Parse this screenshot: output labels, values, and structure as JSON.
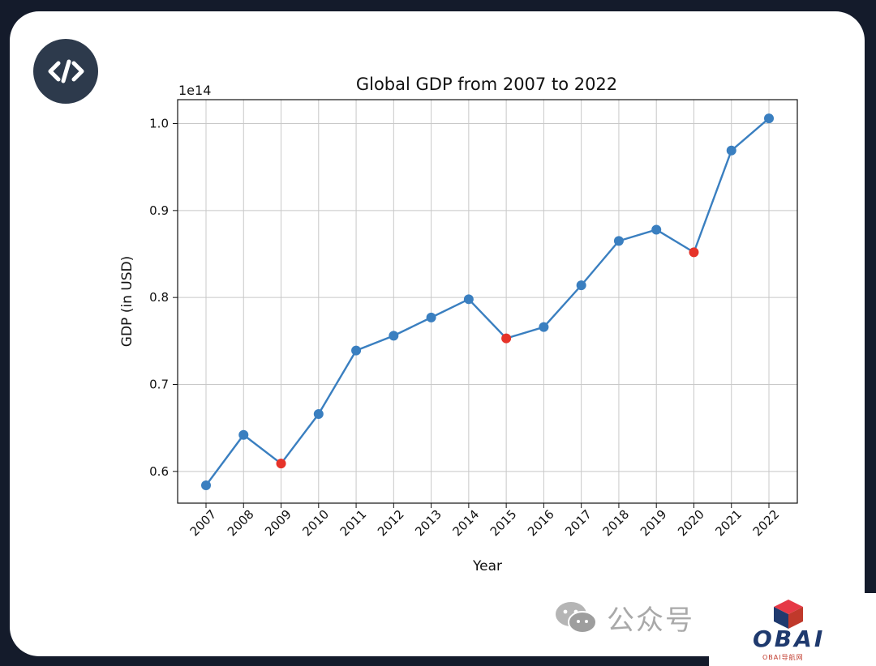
{
  "badge": {
    "icon": "code-icon"
  },
  "chart_data": {
    "type": "line",
    "title": "Global GDP from 2007 to 2022",
    "xlabel": "Year",
    "ylabel": "GDP (in USD)",
    "y_offset_label": "1e14",
    "x": [
      "2007",
      "2008",
      "2009",
      "2010",
      "2011",
      "2012",
      "2013",
      "2014",
      "2015",
      "2016",
      "2017",
      "2018",
      "2019",
      "2020",
      "2021",
      "2022"
    ],
    "series": [
      {
        "values": [
          0.584,
          0.642,
          0.609,
          0.666,
          0.739,
          0.756,
          0.777,
          0.798,
          0.753,
          0.766,
          0.814,
          0.865,
          0.878,
          0.852,
          0.969,
          1.006
        ],
        "color": "#3a7fc0"
      }
    ],
    "highlight_points": [
      {
        "x": "2009",
        "value": 0.609,
        "color": "#e63329"
      },
      {
        "x": "2015",
        "value": 0.753,
        "color": "#e63329"
      },
      {
        "x": "2020",
        "value": 0.852,
        "color": "#e63329"
      }
    ],
    "yticks": [
      "0.6",
      "0.7",
      "0.8",
      "0.9",
      "1.0"
    ],
    "ylim": [
      0.5635,
      1.0275
    ],
    "grid": true,
    "legend": "none"
  },
  "watermark": {
    "text": "公众号",
    "icon": "wechat-icon"
  },
  "logo": {
    "text": "OBAI",
    "subtext": "OBAI导航网",
    "icon": "cube-icon"
  }
}
